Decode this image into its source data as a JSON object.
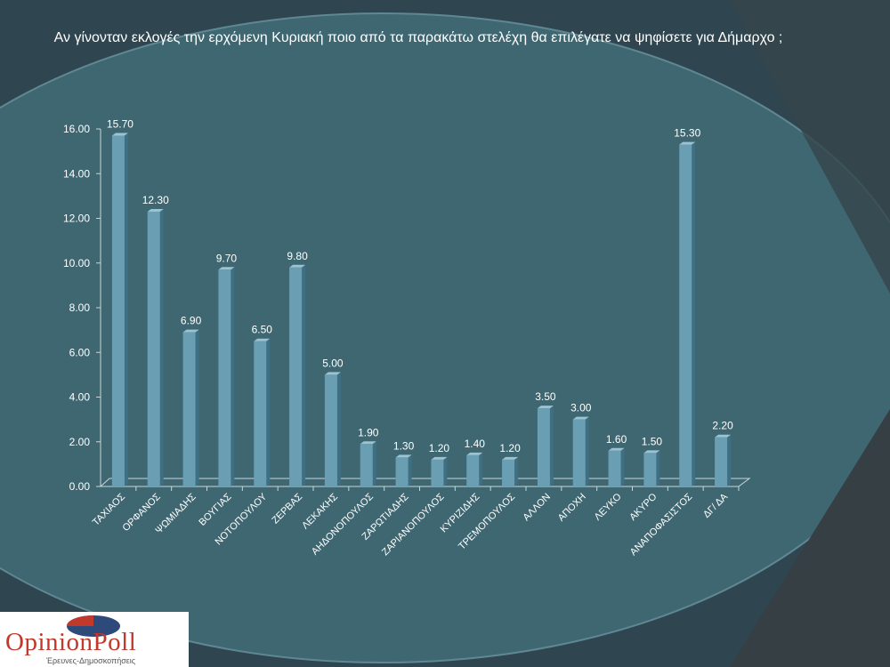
{
  "slide": {
    "title": "Αν γίνονταν εκλογές την ερχόμενη Κυριακή ποιο από τα παρακάτω στελέχη θα επιλέγατε να ψηφίσετε για Δήμαρχο ;"
  },
  "logo": {
    "brand_text": "OpinionPoll",
    "tagline": "Έρευνες-Δημοσκοπήσεις"
  },
  "colors": {
    "background": "#2f4550",
    "bar": "#6a9fb3",
    "text": "#ffffff"
  },
  "chart_data": {
    "type": "bar",
    "title": "Αν γίνονταν εκλογές την ερχόμενη Κυριακή ποιο από τα παρακάτω στελέχη θα επιλέγατε να ψηφίσετε για Δήμαρχο ;",
    "categories": [
      "ΤΑΧΙΑΟΣ",
      "ΟΡΦΑΝΟΣ",
      "ΨΩΜΙΑΔΗΣ",
      "ΒΟΥΓΙΑΣ",
      "ΝΟΤΟΠΟΥΛΟΥ",
      "ΖΕΡΒΑΣ",
      "ΛΕΚΑΚΗΣ",
      "ΑΗΔΟΝΟΠΟΥΛΟΣ",
      "ΖΑΡΩΤΙΑΔΗΣ",
      "ΖΑΡΙΑΝΟΠΟΥΛΟΣ",
      "ΚΥΡΙΖΙΔΗΣ",
      "ΤΡΕΜΟΠΟΥΛΟΣ",
      "ΑΛΛΟΝ",
      "ΑΠΟΧΗ",
      "ΛΕΥΚΟ",
      "ΑΚΥΡΟ",
      "ΑΝΑΠΟΦΑΣΙΣΤΟΣ",
      "ΔΓ/ ΔΑ"
    ],
    "values": [
      15.7,
      12.3,
      6.9,
      9.7,
      6.5,
      9.8,
      5.0,
      1.9,
      1.3,
      1.2,
      1.4,
      1.2,
      3.5,
      3.0,
      1.6,
      1.5,
      15.3,
      2.2
    ],
    "value_labels": [
      "15.70",
      "12.30",
      "6.90",
      "9.70",
      "6.50",
      "9.80",
      "5.00",
      "1.90",
      "1.30",
      "1.20",
      "1.40",
      "1.20",
      "3.50",
      "3.00",
      "1.60",
      "1.50",
      "15.30",
      "2.20"
    ],
    "yticks": [
      "0.00",
      "2.00",
      "4.00",
      "6.00",
      "8.00",
      "10.00",
      "12.00",
      "14.00",
      "16.00"
    ],
    "ylim": [
      0,
      16
    ],
    "xlabel": "",
    "ylabel": "",
    "grid": false,
    "legend": "none"
  }
}
